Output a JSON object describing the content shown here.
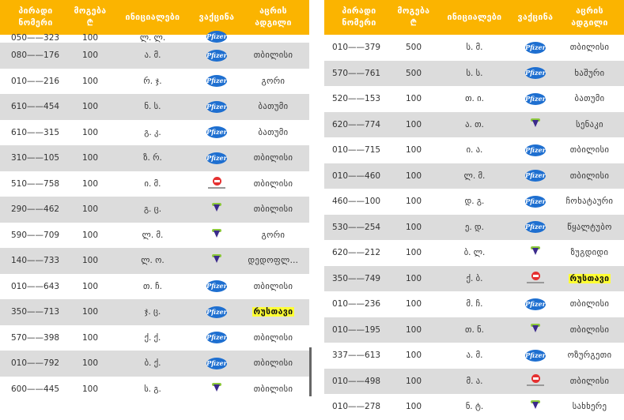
{
  "header": {
    "number": "პირადი\nნომერი",
    "amount": "მოგება\n₾",
    "initials": "ინიციალები",
    "vaccine": "ვაქცინა",
    "city": "აცრის\nადგილი"
  },
  "icons": {
    "pfizer": "pfizer-logo-icon",
    "astrazeneca": "astrazeneca-logo-icon",
    "sinopharm": "sinopharm-logo-icon",
    "pfizer_text": "Pfizer",
    "pfizer_color": "#1e6fd0",
    "astra_color": "#3b2a8c",
    "sinopharm_color": "#e53030",
    "header_color": "#fbb400",
    "highlight_color": "#ffff33"
  },
  "left_rows": [
    {
      "number": "050——323",
      "amount": "100",
      "initials": "ლ. ლ.",
      "vaccine": "pfizer",
      "city": ""
    },
    {
      "number": "080——176",
      "amount": "100",
      "initials": "ა. მ.",
      "vaccine": "pfizer",
      "city": "თბილისი"
    },
    {
      "number": "010——216",
      "amount": "100",
      "initials": "რ. ჯ.",
      "vaccine": "pfizer",
      "city": "გორი"
    },
    {
      "number": "610——454",
      "amount": "100",
      "initials": "ნ. ს.",
      "vaccine": "pfizer",
      "city": "ბათუმი"
    },
    {
      "number": "610——315",
      "amount": "100",
      "initials": "გ. კ.",
      "vaccine": "pfizer",
      "city": "ბათუმი"
    },
    {
      "number": "310——105",
      "amount": "100",
      "initials": "ზ. რ.",
      "vaccine": "pfizer",
      "city": "თბილისი"
    },
    {
      "number": "510——758",
      "amount": "100",
      "initials": "ი. მ.",
      "vaccine": "sinopharm",
      "city": "თბილისი"
    },
    {
      "number": "290——462",
      "amount": "100",
      "initials": "გ. ც.",
      "vaccine": "astrazeneca",
      "city": "თბილისი"
    },
    {
      "number": "590——709",
      "amount": "100",
      "initials": "ლ. მ.",
      "vaccine": "astrazeneca",
      "city": "გორი"
    },
    {
      "number": "140——733",
      "amount": "100",
      "initials": "ლ. ო.",
      "vaccine": "astrazeneca",
      "city": "დედოფლ…"
    },
    {
      "number": "010——643",
      "amount": "100",
      "initials": "თ. ჩ.",
      "vaccine": "pfizer",
      "city": "თბილისი"
    },
    {
      "number": "350——713",
      "amount": "100",
      "initials": "ჯ. ც.",
      "vaccine": "pfizer",
      "city": "რუსთავი",
      "highlight": true
    },
    {
      "number": "570——398",
      "amount": "100",
      "initials": "ქ. ქ.",
      "vaccine": "pfizer",
      "city": "თბილისი"
    },
    {
      "number": "010——792",
      "amount": "100",
      "initials": "ბ. ქ.",
      "vaccine": "pfizer",
      "city": "თბილისი"
    },
    {
      "number": "600——445",
      "amount": "100",
      "initials": "ს. გ.",
      "vaccine": "astrazeneca",
      "city": "თბილისი"
    }
  ],
  "right_rows": [
    {
      "number": "010——379",
      "amount": "500",
      "initials": "ს. მ.",
      "vaccine": "pfizer",
      "city": "თბილისი"
    },
    {
      "number": "570——761",
      "amount": "500",
      "initials": "ს. ს.",
      "vaccine": "pfizer",
      "city": "ხაშური"
    },
    {
      "number": "520——153",
      "amount": "100",
      "initials": "თ. ი.",
      "vaccine": "pfizer",
      "city": "ბათუმი"
    },
    {
      "number": "620——774",
      "amount": "100",
      "initials": "ა. თ.",
      "vaccine": "astrazeneca",
      "city": "სენაკი"
    },
    {
      "number": "010——715",
      "amount": "100",
      "initials": "ი. ა.",
      "vaccine": "pfizer",
      "city": "თბილისი"
    },
    {
      "number": "010——460",
      "amount": "100",
      "initials": "ლ. მ.",
      "vaccine": "pfizer",
      "city": "თბილისი"
    },
    {
      "number": "460——100",
      "amount": "100",
      "initials": "დ. გ.",
      "vaccine": "pfizer",
      "city": "ჩოხატაური"
    },
    {
      "number": "530——254",
      "amount": "100",
      "initials": "ე. დ.",
      "vaccine": "pfizer",
      "city": "წყალტუბო"
    },
    {
      "number": "620——212",
      "amount": "100",
      "initials": "ბ. ლ.",
      "vaccine": "astrazeneca",
      "city": "ზუგდიდი"
    },
    {
      "number": "350——749",
      "amount": "100",
      "initials": "ქ. ბ.",
      "vaccine": "sinopharm",
      "city": "რუსთავი",
      "highlight": true
    },
    {
      "number": "010——236",
      "amount": "100",
      "initials": "მ. ჩ.",
      "vaccine": "pfizer",
      "city": "თბილისი"
    },
    {
      "number": "010——195",
      "amount": "100",
      "initials": "თ. ნ.",
      "vaccine": "astrazeneca",
      "city": "თბილისი"
    },
    {
      "number": "337——613",
      "amount": "100",
      "initials": "ა. მ.",
      "vaccine": "pfizer",
      "city": "ოზურგეთი"
    },
    {
      "number": "010——498",
      "amount": "100",
      "initials": "მ. ა.",
      "vaccine": "sinopharm",
      "city": "თბილისი"
    },
    {
      "number": "010——278",
      "amount": "100",
      "initials": "ნ. ტ.",
      "vaccine": "astrazeneca",
      "city": "სახხერე"
    }
  ]
}
